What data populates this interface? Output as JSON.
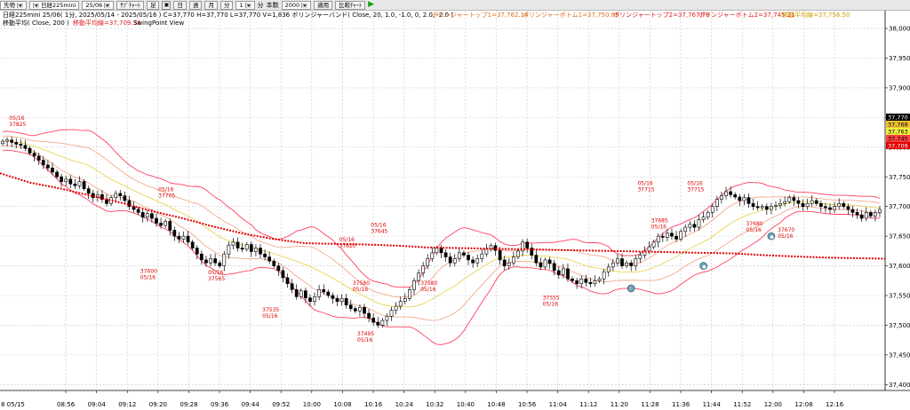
{
  "toolbar": {
    "instrument": "先物",
    "product": "日経225mini",
    "contract": "25/06",
    "buttons": [
      "ｻﾌﾞﾁｬｰﾄ",
      "足",
      "日",
      "週",
      "月",
      "分"
    ],
    "interval": "1",
    "interval_unit": "分",
    "unit_label": "本数",
    "count": "2000",
    "apply": "適用",
    "compare": "比較ﾁｬｰﾄ"
  },
  "info": {
    "line1": "日経225mini 25/06( 1分, 2025/05/14 - 2025/05/16 )  C=37,770 H=37,770 L=37,770 V=1,836  ボリンジャーバンド( Close, 20, 1.0, -1.0, 0, 2.0, -2.0 )",
    "bb_top1": "ボリンジャートップ1=37,762.14",
    "bb_bottom1": "ボリンジャーボトム1=37,750.85",
    "bb_top2": "ボリンジャートップ2=37,767.78",
    "bb_bottom2": "ボリンジャーボトム2=37,745.21",
    "ma_label_tail": "移動平均線=37,756.50",
    "line2": "移動平均( Close, 200 )",
    "ma_value": "移動平均線=37,709.38",
    "swing": "SwingPoint View"
  },
  "price_badges": [
    {
      "text": "37,770",
      "bg": "#000000",
      "fg": "#ffffff"
    },
    {
      "text": "37,768",
      "bg": "#f0c030",
      "fg": "#000000"
    },
    {
      "text": "37,763",
      "bg": "#f0f040",
      "fg": "#000000"
    },
    {
      "text": "37,745",
      "bg": "#ff4040",
      "fg": "#000000"
    },
    {
      "text": "37,709",
      "bg": "#e00000",
      "fg": "#ffffff"
    }
  ],
  "colors": {
    "bg": "#ffffff",
    "grid": "#c8c8c8",
    "up_candle": "#ffffff",
    "down_candle": "#000000",
    "bb_outer": "#ff4060",
    "bb_inner": "#f0a080",
    "bb_mid": "#e8d040",
    "ma200": "#e00000",
    "marker_text": "#e00000",
    "swing_circle": "#6aa0b8"
  },
  "chart_data": {
    "type": "candlestick",
    "title": "日経225mini 25/06",
    "ylim": [
      37390,
      38030
    ],
    "yticks": [
      37400,
      37450,
      37500,
      37550,
      37600,
      37650,
      37700,
      37750,
      37800,
      37850,
      37900,
      37950,
      38000
    ],
    "ytick_labels": [
      "37,400",
      "37,450",
      "37,500",
      "37,550",
      "37,600",
      "37,650",
      "37,700",
      "37,750",
      "37,800",
      "37,850",
      "37,900",
      "37,950",
      "38,000"
    ],
    "xlim": [
      "08:45",
      "12:20"
    ],
    "xticks": [
      "08:56",
      "09:04",
      "09:12",
      "09:20",
      "09:28",
      "09:36",
      "09:44",
      "09:52",
      "10:00",
      "10:08",
      "10:16",
      "10:24",
      "10:32",
      "10:40",
      "10:48",
      "10:56",
      "11:04",
      "11:12",
      "11:20",
      "11:28",
      "11:36",
      "11:44",
      "11:52",
      "12:00",
      "12:08",
      "12:16"
    ],
    "first_label": "8 05/15",
    "closes": [
      37810,
      37812,
      37808,
      37805,
      37803,
      37798,
      37790,
      37785,
      37778,
      37770,
      37765,
      37758,
      37750,
      37742,
      37746,
      37738,
      37735,
      37742,
      37730,
      37722,
      37715,
      37720,
      37712,
      37705,
      37715,
      37722,
      37718,
      37710,
      37700,
      37695,
      37690,
      37682,
      37688,
      37680,
      37672,
      37668,
      37675,
      37660,
      37650,
      37645,
      37650,
      37640,
      37630,
      37620,
      37610,
      37605,
      37612,
      37605,
      37600,
      37620,
      37635,
      37640,
      37630,
      37628,
      37636,
      37624,
      37630,
      37620,
      37615,
      37608,
      37600,
      37592,
      37580,
      37570,
      37560,
      37548,
      37558,
      37546,
      37540,
      37548,
      37560,
      37556,
      37550,
      37545,
      37540,
      37545,
      37534,
      37528,
      37524,
      37530,
      37520,
      37512,
      37505,
      37500,
      37508,
      37515,
      37525,
      37532,
      37540,
      37545,
      37560,
      37575,
      37588,
      37600,
      37612,
      37622,
      37630,
      37622,
      37615,
      37605,
      37612,
      37622,
      37618,
      37610,
      37605,
      37612,
      37620,
      37628,
      37634,
      37626,
      37610,
      37600,
      37605,
      37615,
      37625,
      37640,
      37630,
      37618,
      37605,
      37598,
      37610,
      37604,
      37592,
      37585,
      37595,
      37578,
      37575,
      37570,
      37578,
      37572,
      37570,
      37575,
      37578,
      37590,
      37598,
      37605,
      37612,
      37600,
      37605,
      37600,
      37612,
      37618,
      37625,
      37632,
      37640,
      37650,
      37648,
      37655,
      37650,
      37645,
      37658,
      37665,
      37670,
      37665,
      37678,
      37682,
      37690,
      37700,
      37712,
      37718,
      37725,
      37720,
      37716,
      37710,
      37715,
      37705,
      37700,
      37698,
      37700,
      37695,
      37700,
      37702,
      37705,
      37708,
      37715,
      37710,
      37705,
      37700,
      37705,
      37710,
      37705,
      37700,
      37698,
      37695,
      37700,
      37705,
      37700,
      37695,
      37690,
      37686,
      37680,
      37690,
      37684,
      37690,
      37695
    ],
    "markers": [
      {
        "date": "05/16",
        "price": "37825",
        "pos": "above"
      },
      {
        "date": "05/16",
        "price": "37705",
        "pos": "above"
      },
      {
        "date": "05/16",
        "price": "37600",
        "pos": "below"
      },
      {
        "date": "05/16",
        "price": "37565",
        "pos": "above"
      },
      {
        "date": "05/16",
        "price": "37535",
        "pos": "below"
      },
      {
        "date": "05/16",
        "price": "37495",
        "pos": "below"
      },
      {
        "date": "05/16",
        "price": "37620",
        "pos": "above"
      },
      {
        "date": "05/16",
        "price": "37645",
        "pos": "above"
      },
      {
        "date": "05/16",
        "price": "37580",
        "pos": "below"
      },
      {
        "date": "05/16",
        "price": "37580",
        "pos": "below"
      },
      {
        "date": "05/16",
        "price": "37555",
        "pos": "below"
      },
      {
        "date": "05/16",
        "price": "37715",
        "pos": "above"
      },
      {
        "date": "05/16",
        "price": "37685",
        "pos": "below"
      },
      {
        "date": "05/16",
        "price": "37715",
        "pos": "above"
      },
      {
        "date": "05/16",
        "price": "37680",
        "pos": "below"
      },
      {
        "date": "05/16",
        "price": "37670",
        "pos": "below"
      }
    ],
    "swing_circles": [
      {
        "bar": 143,
        "price": 37562,
        "label": "!"
      },
      {
        "bar": 160,
        "price": 37600,
        "label": "●"
      },
      {
        "bar": 175,
        "price": 37650,
        "label": "●"
      }
    ],
    "ma200": [
      37756,
      37740,
      37730,
      37718,
      37706,
      37692,
      37680,
      37666,
      37654,
      37645,
      37638,
      37637,
      37636,
      37634,
      37631,
      37630,
      37629,
      37628,
      37627,
      37626,
      37625,
      37624,
      37623,
      37622,
      37621,
      37618,
      37616,
      37614,
      37613,
      37612
    ],
    "legend": "none",
    "grid": true
  }
}
